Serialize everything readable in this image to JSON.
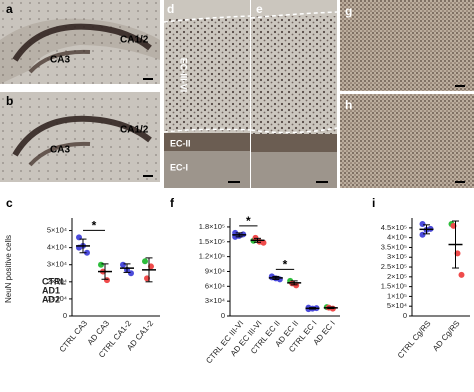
{
  "panels": [
    {
      "letter": "a",
      "labels": [
        "CA1/2",
        "CA3"
      ]
    },
    {
      "letter": "b",
      "labels": [
        "CA1/2",
        "CA3"
      ]
    },
    {
      "letter": "d",
      "labels": [
        "EC-III-VI",
        "EC-II",
        "EC-I"
      ]
    },
    {
      "letter": "e",
      "labels": []
    },
    {
      "letter": "g",
      "labels": []
    },
    {
      "letter": "h",
      "labels": []
    }
  ],
  "chart_data": [
    {
      "type": "dotplot",
      "letter": "c",
      "y_label": "NeuN positive cells",
      "categories": [
        "CTRL CA3",
        "AD CA3",
        "CTRL CA1-2",
        "AD CA1-2"
      ],
      "series": [
        {
          "name": "CTRL",
          "color": "#4b4bdb",
          "values": [
            [
              46000,
              41000,
              37000,
              40000
            ],
            null,
            [
              30000,
              27000,
              25000
            ],
            null
          ]
        },
        {
          "name": "AD1",
          "color": "#2dbd3c",
          "values": [
            null,
            [
              30000
            ],
            null,
            [
              32000
            ]
          ]
        },
        {
          "name": "AD2",
          "color": "#ef4b4b",
          "values": [
            null,
            [
              26000,
              21000
            ],
            null,
            [
              22000,
              29000
            ]
          ]
        }
      ],
      "mean": [
        41000,
        26000,
        28000,
        27000
      ],
      "sd": [
        4000,
        4500,
        2500,
        7000
      ],
      "significance": [
        {
          "pair": [
            0,
            1
          ],
          "label": "*"
        }
      ],
      "ylim": [
        0,
        55000
      ],
      "yticks": [
        {
          "value": 0,
          "label": "0"
        },
        {
          "value": 10000,
          "label": "1×10⁴"
        },
        {
          "value": 20000,
          "label": "2×10⁴"
        },
        {
          "value": 30000,
          "label": "3×10⁴"
        },
        {
          "value": 40000,
          "label": "4×10⁴"
        },
        {
          "value": 50000,
          "label": "5×10⁴"
        }
      ],
      "legend": true
    },
    {
      "type": "dotplot",
      "letter": "f",
      "categories": [
        "CTRL EC III-VI",
        "AD EC III-VI",
        "CTRL EC II",
        "AD EC II",
        "CTRL EC I",
        "AD EC I"
      ],
      "series": [
        {
          "name": "CTRL",
          "color": "#4b4bdb",
          "values": [
            [
              168000,
              162000,
              165000,
              160000
            ],
            null,
            [
              80000,
              76000,
              74000,
              78000
            ],
            null,
            [
              17000,
              15000,
              16000,
              14000
            ],
            null
          ]
        },
        {
          "name": "AD1",
          "color": "#2dbd3c",
          "values": [
            null,
            [
              152000
            ],
            null,
            [
              71000
            ],
            null,
            [
              18000
            ]
          ]
        },
        {
          "name": "AD2",
          "color": "#ef4b4b",
          "values": [
            null,
            [
              158000,
              150000,
              148000
            ],
            null,
            [
              66000,
              62000
            ],
            null,
            [
              17000,
              15000
            ]
          ]
        }
      ],
      "mean": [
        164000,
        153000,
        77000,
        67000,
        15500,
        16500
      ],
      "sd": [
        4000,
        4000,
        3000,
        4000,
        1500,
        1500
      ],
      "significance": [
        {
          "pair": [
            0,
            1
          ],
          "label": "*"
        },
        {
          "pair": [
            2,
            3
          ],
          "label": "*"
        }
      ],
      "ylim": [
        0,
        190000
      ],
      "yticks": [
        {
          "value": 0,
          "label": "0"
        },
        {
          "value": 30000,
          "label": "3×10⁴"
        },
        {
          "value": 60000,
          "label": "6×10⁴"
        },
        {
          "value": 90000,
          "label": "9×10⁴"
        },
        {
          "value": 120000,
          "label": "1.2×10⁵"
        },
        {
          "value": 150000,
          "label": "1.5×10⁵"
        },
        {
          "value": 180000,
          "label": "1.8×10⁵"
        }
      ]
    },
    {
      "type": "dotplot",
      "letter": "i",
      "categories": [
        "CTRL Cg/RS",
        "AD Cg/RS"
      ],
      "series": [
        {
          "name": "CTRL",
          "color": "#4b4bdb",
          "values": [
            [
              470000,
              440000,
              445000,
              415000
            ],
            null
          ]
        },
        {
          "name": "AD1",
          "color": "#2dbd3c",
          "values": [
            null,
            [
              470000
            ]
          ]
        },
        {
          "name": "AD2",
          "color": "#ef4b4b",
          "values": [
            null,
            [
              460000,
              320000,
              210000
            ]
          ]
        }
      ],
      "mean": [
        442500,
        365000
      ],
      "sd": [
        23000,
        120000
      ],
      "ylim": [
        0,
        480000
      ],
      "yticks": [
        {
          "value": 0,
          "label": "0"
        },
        {
          "value": 50000,
          "label": "5×10⁴"
        },
        {
          "value": 100000,
          "label": "1×10⁵"
        },
        {
          "value": 150000,
          "label": "1.5×10⁵"
        },
        {
          "value": 200000,
          "label": "2×10⁵"
        },
        {
          "value": 250000,
          "label": "2.5×10⁵"
        },
        {
          "value": 300000,
          "label": "3×10⁵"
        },
        {
          "value": 350000,
          "label": "3.5×10⁵"
        },
        {
          "value": 400000,
          "label": "4×10⁵"
        },
        {
          "value": 450000,
          "label": "4.5×10⁵"
        }
      ]
    }
  ]
}
